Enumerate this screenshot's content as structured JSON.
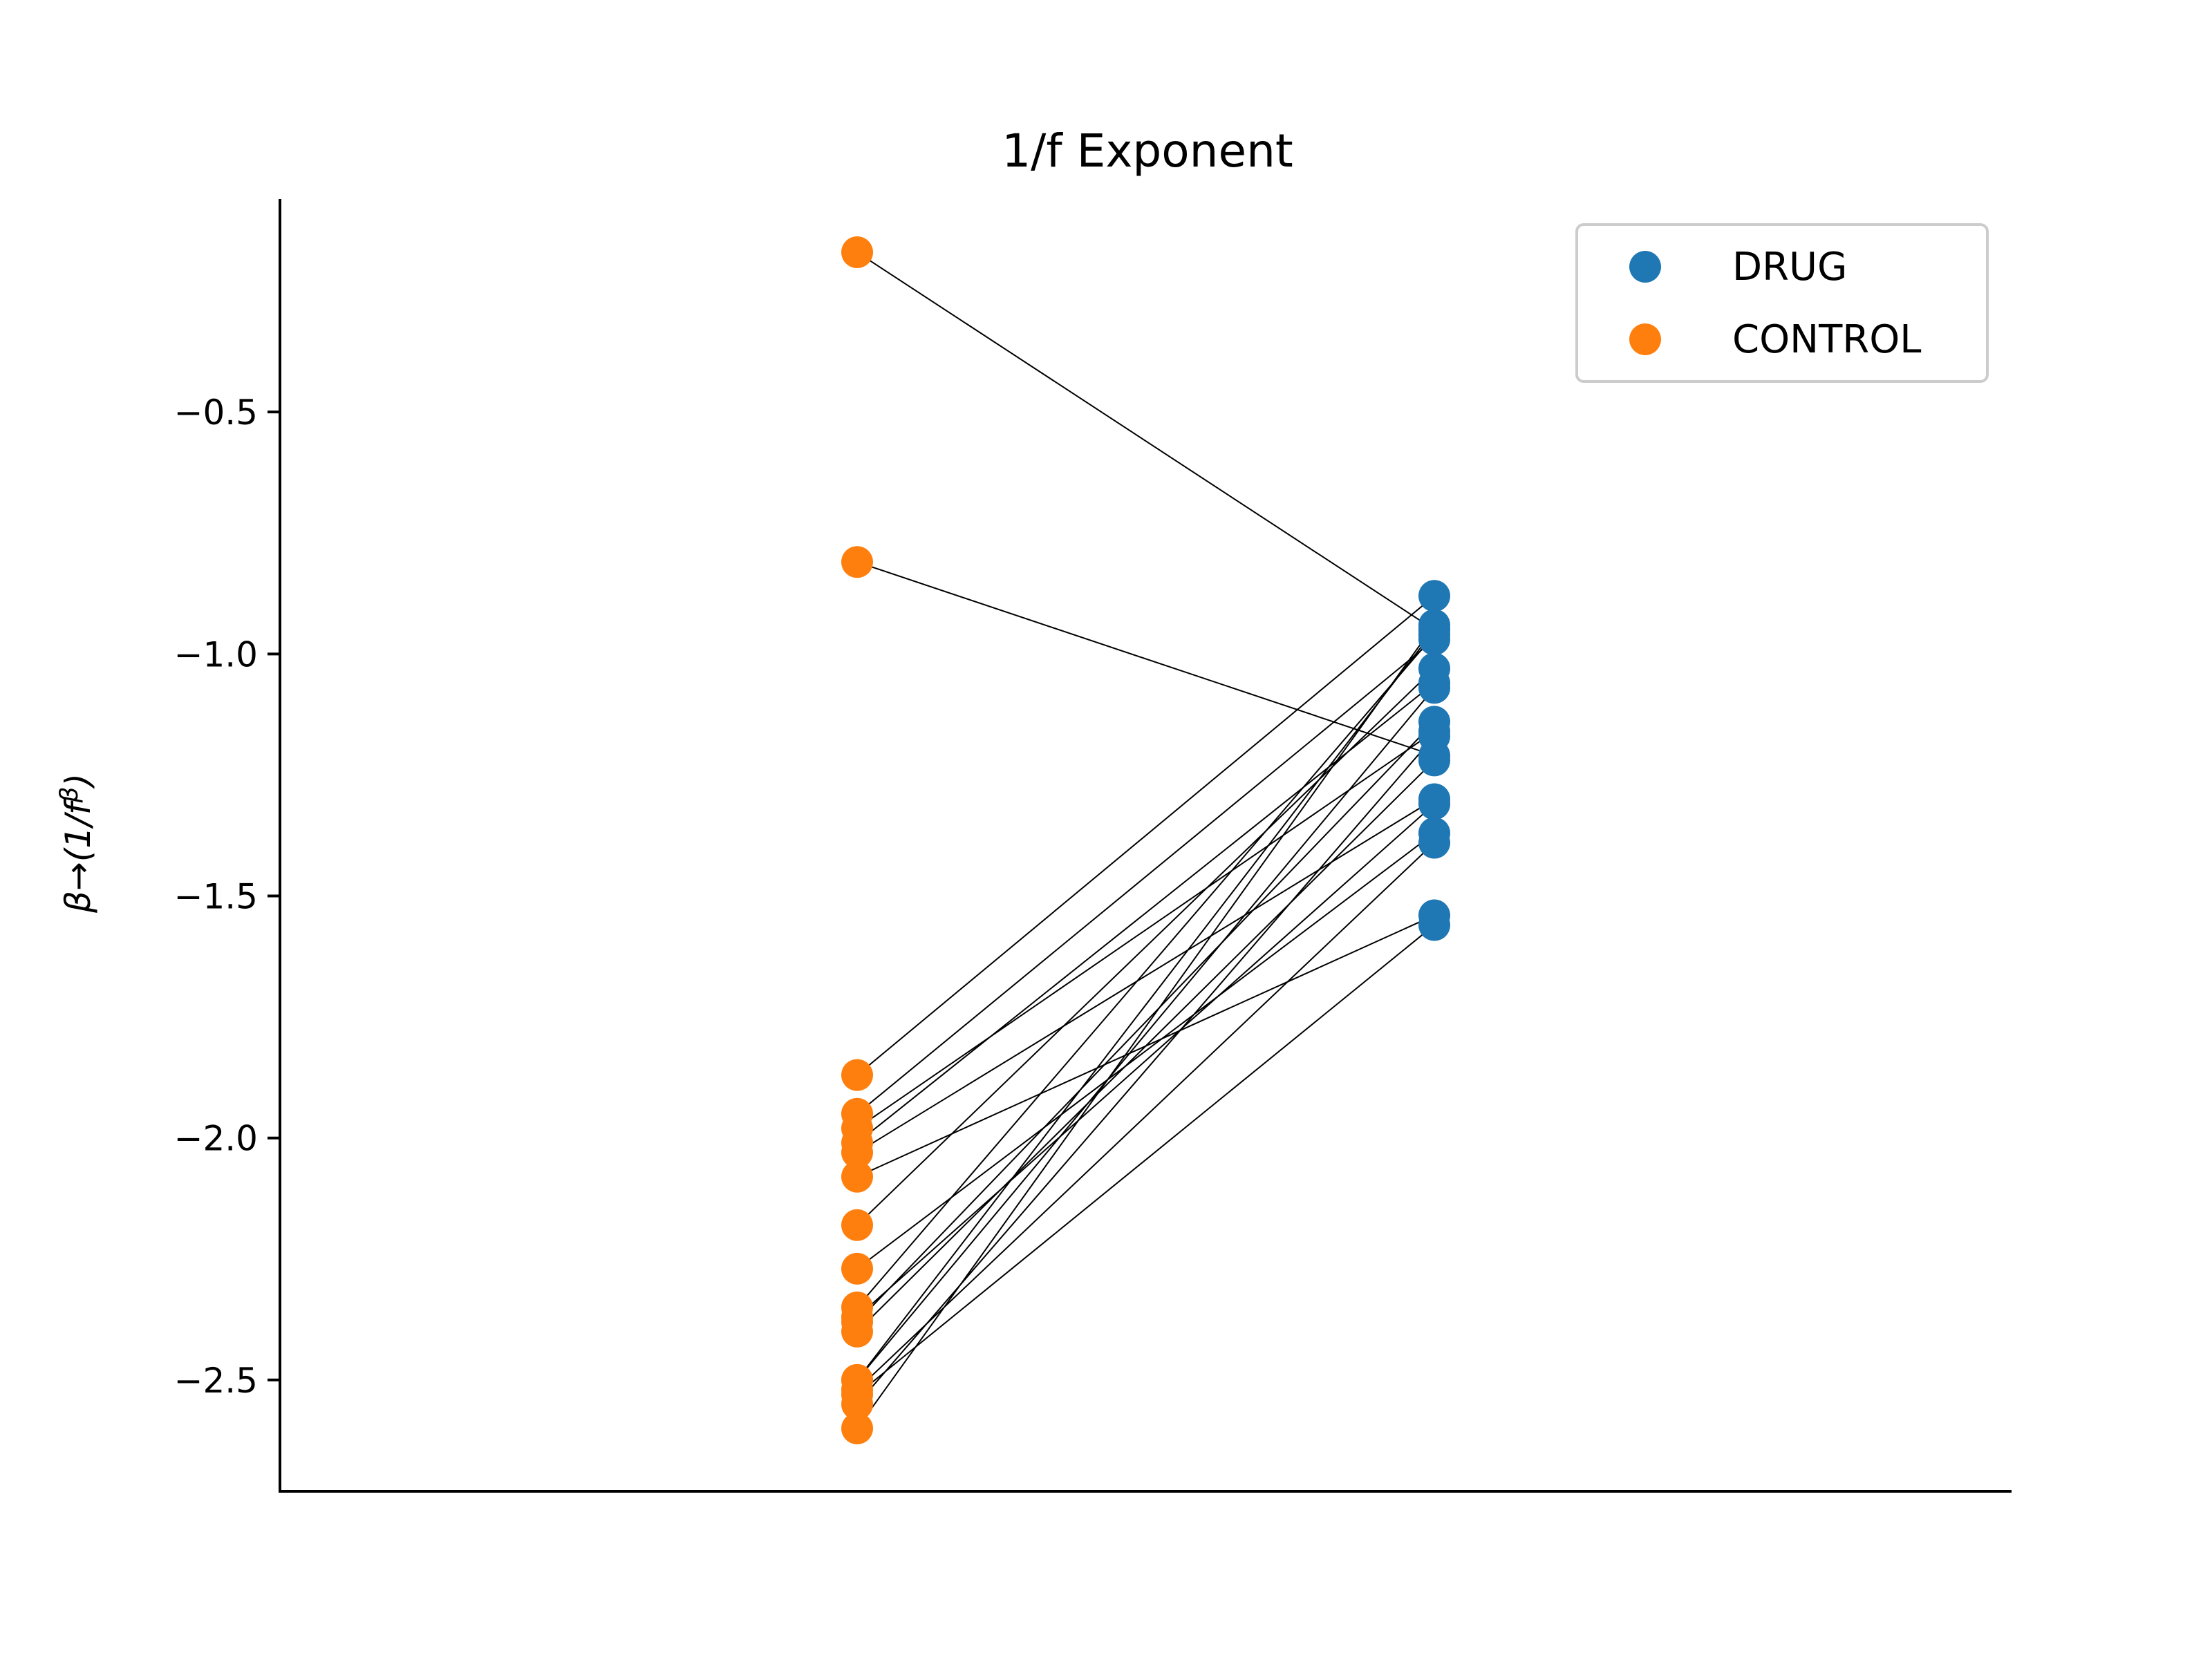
{
  "chart_data": {
    "type": "scatter",
    "title": "1/f Exponent",
    "ylabel": "β→(1/f^β)",
    "ylabel_parts": {
      "prefix": "β→(1/",
      "base": "f",
      "sup": "β",
      "suffix": ")"
    },
    "ylim": [
      -2.73,
      -0.06
    ],
    "xlim": [
      -1.0,
      2.0
    ],
    "yticks": [
      -0.5,
      -1.0,
      -1.5,
      -2.0,
      -2.5
    ],
    "ytick_labels": [
      "−0.5",
      "−1.0",
      "−1.5",
      "−2.0",
      "−2.5"
    ],
    "grid": false,
    "legend_position": "top-right",
    "series": [
      {
        "name": "DRUG",
        "color": "#1f77b4",
        "x": 1,
        "values": [
          -0.95,
          -1.21,
          -0.88,
          -0.97,
          -1.16,
          -1.06,
          -1.3,
          -1.54,
          -1.03,
          -1.37,
          -0.96,
          -1.14,
          -1.22,
          -0.95,
          -1.39,
          -1.56,
          -1.17,
          -0.94,
          -1.07,
          -1.31
        ]
      },
      {
        "name": "CONTROL",
        "color": "#ff7f0e",
        "x": 0,
        "values": [
          -0.17,
          -0.81,
          -1.87,
          -1.95,
          -1.98,
          -2.01,
          -2.03,
          -2.08,
          -2.18,
          -2.27,
          -2.35,
          -2.38,
          -2.4,
          -2.5,
          -2.52,
          -2.53,
          -2.55,
          -2.6,
          -2.5,
          -2.37
        ]
      }
    ],
    "pairs_note": "line connects CONTROL[i] to DRUG[i]"
  }
}
